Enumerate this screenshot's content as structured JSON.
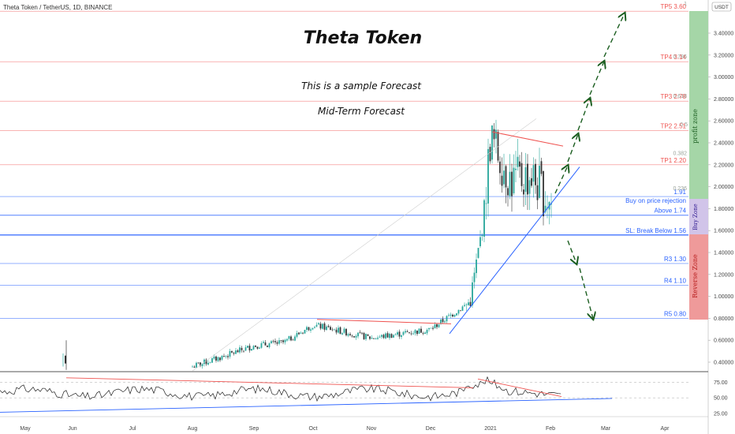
{
  "symbol_line": "Theta Token / TetherUS, 1D, BINANCE",
  "currency_badge": "USDT",
  "title": "Theta Token",
  "subtitle1": "This is a sample Forecast",
  "subtitle2": "Mid-Term Forecast",
  "zones": {
    "profit": "profit zone",
    "buy": "Buy Zone",
    "reverse": "Reverse Zone"
  },
  "colors": {
    "profit": "#a5d6a7",
    "buy": "#d1c4e9",
    "reverse": "#ef9a9a",
    "target_line": "#ef5350",
    "support_line": "#2962ff",
    "arrow": "#1b5e20",
    "up": "#26a69a",
    "down": "#333333"
  },
  "chart_data": {
    "type": "candlestick",
    "symbol": "Theta Token / TetherUS",
    "interval": "1D",
    "exchange": "BINANCE",
    "ylim": [
      0.3,
      3.62
    ],
    "y_ticks": [
      "3.40000",
      "3.20000",
      "3.00000",
      "2.80000",
      "2.60000",
      "2.40000",
      "2.20000",
      "2.00000",
      "1.80000",
      "1.60000",
      "1.40000",
      "1.20000",
      "1.00000",
      "0.80000",
      "0.60000",
      "0.40000"
    ],
    "x_ticks": [
      "May",
      "Jun",
      "Jul",
      "Aug",
      "Sep",
      "Oct",
      "Nov",
      "Dec",
      "2021",
      "Feb",
      "Mar",
      "Apr"
    ],
    "levels": [
      {
        "label": "TP5 3.60",
        "value": 3.6,
        "color": "#ef5350"
      },
      {
        "label": "TP4 3.14",
        "value": 3.14,
        "color": "#ef5350"
      },
      {
        "label": "TP3 2.78",
        "value": 2.78,
        "color": "#ef5350"
      },
      {
        "label": "TP2 2.51",
        "value": 2.51,
        "color": "#ef5350"
      },
      {
        "label": "TP1 2.20",
        "value": 2.2,
        "color": "#ef5350"
      },
      {
        "label": "1.91",
        "value": 1.91,
        "color": "#2962ff"
      },
      {
        "label": "Buy on price rejection",
        "value": 1.83,
        "color": "#2962ff"
      },
      {
        "label": "Above 1.74",
        "value": 1.74,
        "color": "#2962ff"
      },
      {
        "label": "SL: Break Below 1.56",
        "value": 1.56,
        "color": "#2962ff"
      },
      {
        "label": "R3 1.30",
        "value": 1.3,
        "color": "#2962ff"
      },
      {
        "label": "R4 1.10",
        "value": 1.1,
        "color": "#2962ff"
      },
      {
        "label": "R5 0.80",
        "value": 0.8,
        "color": "#2962ff"
      }
    ],
    "fib_labels": [
      {
        "label": "1",
        "value": 3.63
      },
      {
        "label": "0.786",
        "value": 3.17
      },
      {
        "label": "0.618",
        "value": 2.81
      },
      {
        "label": "0.5",
        "value": 2.55
      },
      {
        "label": "0.382",
        "value": 2.29
      },
      {
        "label": "0.236",
        "value": 1.97
      }
    ],
    "price_path": [
      [
        "Aug",
        0.36
      ],
      [
        "Aug 15",
        0.45
      ],
      [
        "Sep",
        0.55
      ],
      [
        "Sep 15",
        0.58
      ],
      [
        "Oct",
        0.74
      ],
      [
        "Oct 15",
        0.68
      ],
      [
        "Nov",
        0.62
      ],
      [
        "Nov 15",
        0.66
      ],
      [
        "Dec",
        0.7
      ],
      [
        "Dec 20",
        0.95
      ],
      [
        "Dec 28",
        1.65
      ],
      [
        "2021",
        2.45
      ],
      [
        "Jan 10",
        2.05
      ],
      [
        "Jan 20",
        2.1
      ],
      [
        "Feb",
        1.85
      ]
    ],
    "indicator": {
      "ticks": [
        "75.00",
        "50.00",
        "25.00"
      ],
      "range": [
        25,
        85
      ]
    }
  }
}
